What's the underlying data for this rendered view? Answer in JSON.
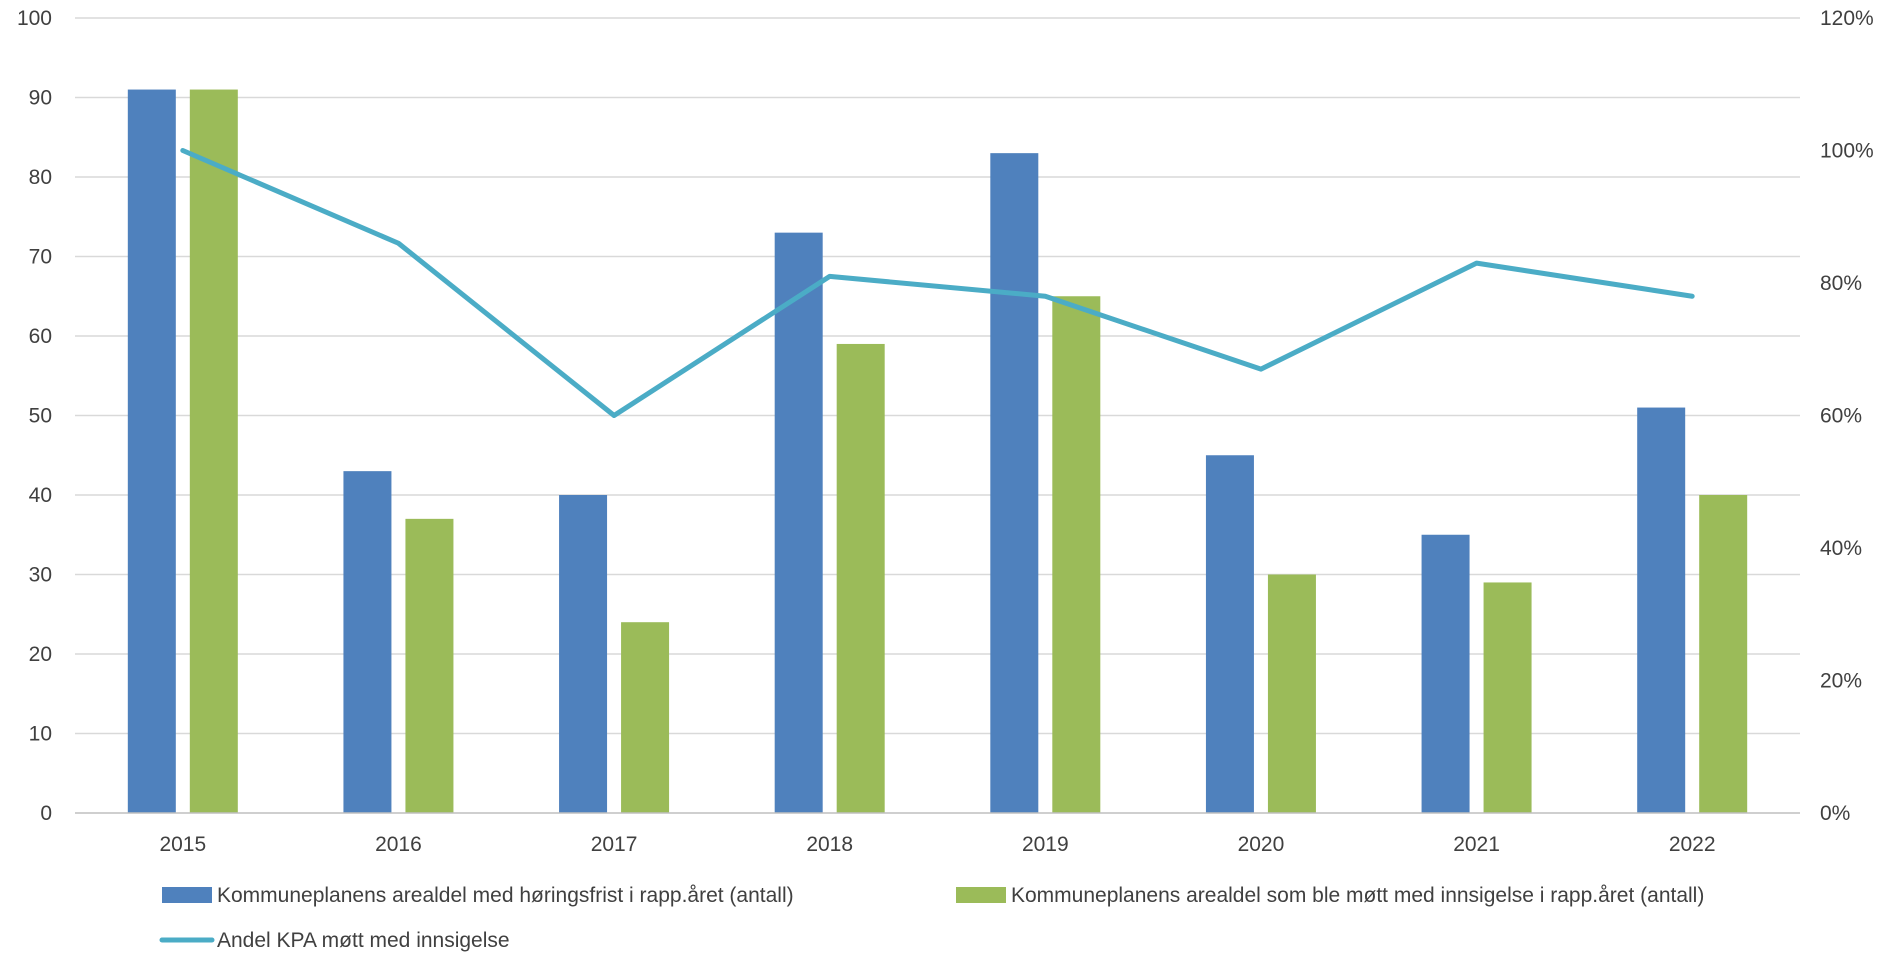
{
  "chart_data": {
    "type": "bar",
    "categories": [
      "2015",
      "2016",
      "2017",
      "2018",
      "2019",
      "2020",
      "2021",
      "2022"
    ],
    "series": [
      {
        "name": "Kommuneplanens arealdel med høringsfrist i rapp.året (antall)",
        "type": "bar",
        "axis": "left",
        "values": [
          91,
          43,
          40,
          73,
          83,
          45,
          35,
          51
        ],
        "color": "#4f81bd"
      },
      {
        "name": "Kommuneplanens arealdel som ble møtt med innsigelse i rapp.året (antall)",
        "type": "bar",
        "axis": "left",
        "values": [
          91,
          37,
          24,
          59,
          65,
          30,
          29,
          40
        ],
        "color": "#9bbb59"
      },
      {
        "name": "Andel KPA møtt med innsigelse",
        "type": "line",
        "axis": "right",
        "values": [
          100,
          86,
          60,
          81,
          78,
          67,
          83,
          78
        ],
        "color": "#4bacc6"
      }
    ],
    "y_left": {
      "ylim": [
        0,
        100
      ],
      "ticks": [
        "0",
        "10",
        "20",
        "30",
        "40",
        "50",
        "60",
        "70",
        "80",
        "90",
        "100"
      ]
    },
    "y_right": {
      "ylim": [
        0,
        120
      ],
      "ticks": [
        "0%",
        "20%",
        "40%",
        "60%",
        "80%",
        "100%",
        "120%"
      ]
    },
    "grid": true,
    "legend_position": "bottom",
    "title": "",
    "xlabel": "",
    "ylabel": ""
  }
}
